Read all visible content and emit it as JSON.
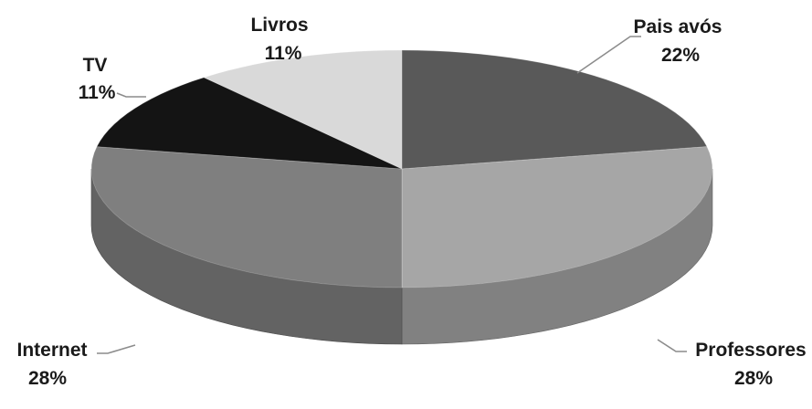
{
  "chart_data": {
    "type": "pie",
    "title": "",
    "start_angle_deg": 0,
    "direction": "clockwise",
    "slices": [
      {
        "label": "Pais avós",
        "value": 22,
        "display": "22%",
        "color": "#595959"
      },
      {
        "label": "Professores",
        "value": 28,
        "display": "28%",
        "color": "#a6a6a6"
      },
      {
        "label": "Internet",
        "value": 28,
        "display": "28%",
        "color": "#7f7f7f"
      },
      {
        "label": "TV",
        "value": 11,
        "display": "11%",
        "color": "#141414"
      },
      {
        "label": "Livros",
        "value": 11,
        "display": "11%",
        "color": "#d9d9d9"
      }
    ],
    "legend": "none",
    "labels": "outside-with-leader-lines"
  }
}
